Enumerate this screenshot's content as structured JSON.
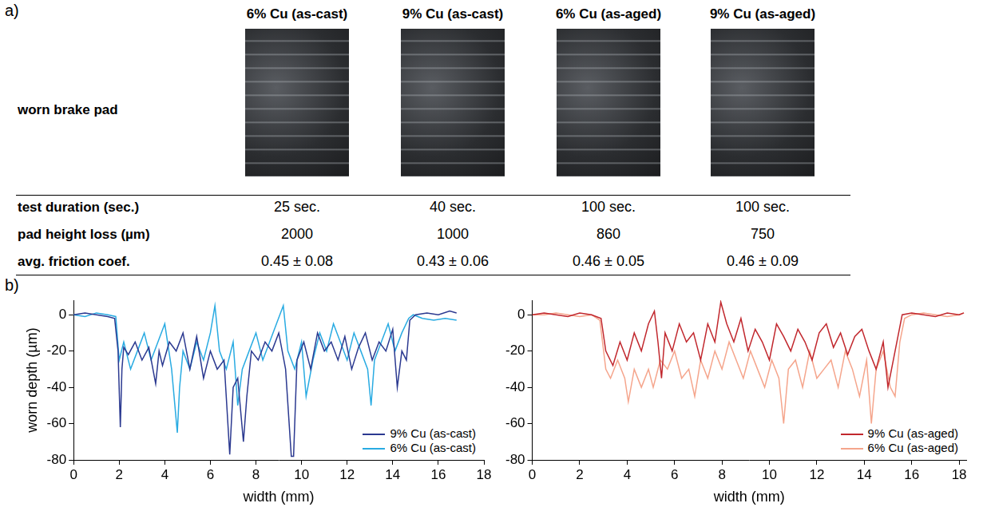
{
  "panel_a": {
    "label": "a)",
    "row_labels": [
      "worn brake pad",
      "test duration (sec.)",
      "pad height loss (µm)",
      "avg. friction coef."
    ],
    "columns": [
      {
        "header": "6% Cu (as-cast)",
        "test_duration": "25 sec.",
        "pad_height_loss": 2000,
        "friction": "0.45 ± 0.08"
      },
      {
        "header": "9% Cu (as-cast)",
        "test_duration": "40 sec.",
        "pad_height_loss": 1000,
        "friction": "0.43 ± 0.06"
      },
      {
        "header": "6% Cu (as-aged)",
        "test_duration": "100 sec.",
        "pad_height_loss": 860,
        "friction": "0.46 ± 0.05"
      },
      {
        "header": "9% Cu (as-aged)",
        "test_duration": "100 sec.",
        "pad_height_loss": 750,
        "friction": "0.46 ± 0.09"
      }
    ]
  },
  "panel_b": {
    "label": "b)"
  },
  "chart_data": [
    {
      "type": "line",
      "x_label": "width (mm)",
      "y_label": "worn depth (µm)",
      "xlim": [
        0,
        18
      ],
      "xticks": [
        0,
        2,
        4,
        6,
        8,
        10,
        12,
        14,
        16,
        18
      ],
      "ylim": [
        -80,
        8
      ],
      "yticks": [
        -80,
        -60,
        -40,
        -20,
        0
      ],
      "grid": false,
      "legend": "lower right",
      "series": [
        {
          "name": "9% Cu (as-cast)",
          "color": "#2b3990",
          "x": [
            0,
            0.5,
            1,
            1.5,
            1.8,
            1.95,
            2.05,
            2.12,
            2.2,
            2.4,
            2.7,
            3.0,
            3.3,
            3.6,
            3.75,
            3.9,
            4.2,
            4.5,
            4.8,
            5.1,
            5.4,
            5.7,
            6.0,
            6.3,
            6.6,
            6.85,
            7.0,
            7.2,
            7.45,
            7.6,
            7.8,
            8.1,
            8.4,
            8.7,
            9.0,
            9.3,
            9.55,
            9.65,
            9.8,
            10.1,
            10.4,
            10.7,
            11.0,
            11.3,
            11.6,
            11.9,
            12.2,
            12.5,
            12.8,
            13.1,
            13.4,
            13.7,
            14.0,
            14.2,
            14.4,
            14.6,
            14.75,
            15.0,
            15.5,
            16.0,
            16.5,
            16.8
          ],
          "values": [
            0,
            1,
            0,
            -1,
            -2,
            -20,
            -62,
            -30,
            -18,
            -22,
            -15,
            -25,
            -18,
            -38,
            -20,
            -28,
            -15,
            -20,
            -10,
            -30,
            -12,
            -35,
            -20,
            -30,
            -25,
            -77,
            -40,
            -35,
            -70,
            -45,
            -20,
            -25,
            -15,
            -20,
            -10,
            -30,
            -78,
            -78,
            -25,
            -15,
            -30,
            -10,
            -20,
            -15,
            -25,
            -12,
            -30,
            -18,
            -10,
            -25,
            -15,
            -20,
            -8,
            -40,
            -20,
            -25,
            -3,
            0,
            1,
            0,
            2,
            1
          ]
        },
        {
          "name": "6% Cu (as-cast)",
          "color": "#29abe2",
          "x": [
            0,
            0.5,
            1,
            1.5,
            1.85,
            2.0,
            2.2,
            2.5,
            2.8,
            3.1,
            3.4,
            3.7,
            4.0,
            4.3,
            4.55,
            4.65,
            4.8,
            5.1,
            5.4,
            5.7,
            6.0,
            6.2,
            6.4,
            6.7,
            7.0,
            7.2,
            7.4,
            7.7,
            8.0,
            8.3,
            8.6,
            8.9,
            9.2,
            9.4,
            9.7,
            10.0,
            10.2,
            10.5,
            10.8,
            11.1,
            11.4,
            11.7,
            12.0,
            12.3,
            12.6,
            12.9,
            13.05,
            13.2,
            13.5,
            13.8,
            14.1,
            14.4,
            14.7,
            14.9,
            15.3,
            15.8,
            16.3,
            16.8
          ],
          "values": [
            0,
            -1,
            1,
            0,
            -1,
            -25,
            -15,
            -30,
            -20,
            -10,
            -25,
            -15,
            -5,
            -30,
            -65,
            -40,
            -20,
            -30,
            -15,
            -25,
            -10,
            5,
            -20,
            -30,
            -15,
            -50,
            -30,
            -20,
            -10,
            -25,
            -15,
            -5,
            5,
            -20,
            -30,
            -15,
            -45,
            -25,
            -10,
            -20,
            -5,
            -15,
            -25,
            -10,
            -20,
            -30,
            -50,
            -25,
            -15,
            -5,
            -20,
            -10,
            -2,
            0,
            -2,
            -3,
            -2,
            -3
          ]
        }
      ]
    },
    {
      "type": "line",
      "x_label": "width (mm)",
      "xlim": [
        0,
        18.3
      ],
      "xticks": [
        0,
        2,
        4,
        6,
        8,
        10,
        12,
        14,
        16,
        18
      ],
      "ylim": [
        -80,
        8
      ],
      "yticks": [
        -80,
        -60,
        -40,
        -20,
        0
      ],
      "grid": false,
      "legend": "lower right",
      "series": [
        {
          "name": "9% Cu (as-aged)",
          "color": "#c1272d",
          "x": [
            0,
            0.5,
            1,
            1.5,
            2,
            2.5,
            2.9,
            3.1,
            3.4,
            3.7,
            4.0,
            4.3,
            4.6,
            4.9,
            5.15,
            5.3,
            5.45,
            5.6,
            5.9,
            6.2,
            6.5,
            6.8,
            7.1,
            7.4,
            7.7,
            7.95,
            8.2,
            8.5,
            8.8,
            9.1,
            9.4,
            9.7,
            10.0,
            10.3,
            10.6,
            10.9,
            11.2,
            11.5,
            11.8,
            12.1,
            12.4,
            12.7,
            13.0,
            13.3,
            13.6,
            13.9,
            14.2,
            14.5,
            14.8,
            15.0,
            15.3,
            15.6,
            16.0,
            16.5,
            17.0,
            17.5,
            18.0,
            18.2
          ],
          "values": [
            0,
            1,
            0,
            -1,
            1,
            0,
            -2,
            -20,
            -28,
            -15,
            -25,
            -10,
            -20,
            -5,
            2,
            -15,
            -35,
            -10,
            -20,
            -5,
            -15,
            -10,
            -25,
            -5,
            -15,
            7,
            -5,
            -15,
            -2,
            -20,
            -8,
            -15,
            -25,
            -5,
            -12,
            -20,
            -8,
            -15,
            -25,
            -10,
            -5,
            -18,
            -10,
            -22,
            -12,
            -8,
            -20,
            -30,
            -15,
            -40,
            -20,
            0,
            1,
            0,
            -1,
            1,
            0,
            1
          ]
        },
        {
          "name": "6% Cu (as-aged)",
          "color": "#f5a58c",
          "x": [
            0,
            0.5,
            1,
            1.5,
            2,
            2.5,
            2.85,
            3.1,
            3.3,
            3.6,
            3.9,
            4.05,
            4.3,
            4.6,
            4.9,
            5.1,
            5.4,
            5.7,
            6.0,
            6.3,
            6.6,
            6.85,
            7.1,
            7.4,
            7.7,
            8.0,
            8.3,
            8.6,
            8.9,
            9.2,
            9.5,
            9.8,
            10.1,
            10.4,
            10.6,
            10.8,
            11.1,
            11.4,
            11.7,
            12.0,
            12.3,
            12.6,
            12.9,
            13.2,
            13.5,
            13.8,
            14.1,
            14.3,
            14.5,
            14.8,
            15.1,
            15.3,
            15.5,
            15.7,
            16.0,
            16.5,
            17.0,
            17.5,
            18.0,
            18.2
          ],
          "values": [
            0,
            0,
            1,
            0,
            -1,
            0,
            -3,
            -30,
            -35,
            -25,
            -35,
            -48,
            -30,
            -40,
            -30,
            -40,
            -25,
            -30,
            -20,
            -35,
            -30,
            -45,
            -25,
            -35,
            -20,
            -30,
            -15,
            -25,
            -35,
            -20,
            -30,
            -40,
            -25,
            -35,
            -60,
            -30,
            -25,
            -40,
            -20,
            -35,
            -30,
            -25,
            -40,
            -20,
            -30,
            -45,
            -25,
            -60,
            -30,
            -20,
            -40,
            -45,
            -15,
            -2,
            0,
            1,
            0,
            -1,
            0,
            1
          ]
        }
      ]
    }
  ]
}
